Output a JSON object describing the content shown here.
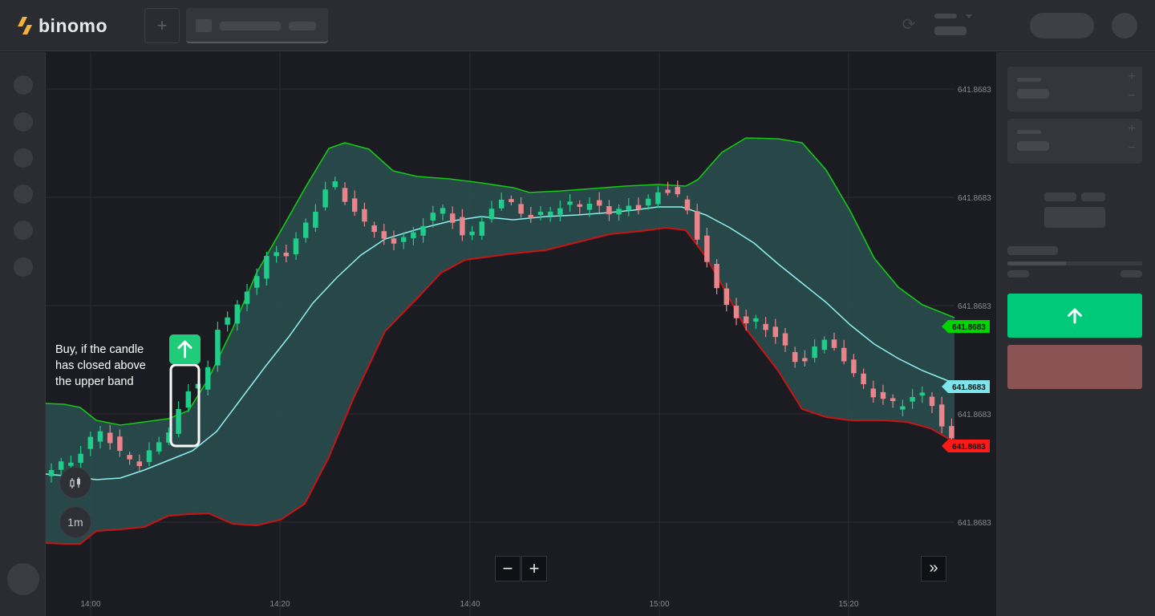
{
  "app": {
    "brand": "binomo"
  },
  "header": {
    "add_tab_label": "+"
  },
  "chart": {
    "y_tick_labels": [
      "641.8683",
      "641.8683",
      "641.8683",
      "641.8683",
      "641.8683"
    ],
    "x_tick_labels": [
      "14:00",
      "14:20",
      "14:40",
      "15:00",
      "15:20"
    ],
    "tags": {
      "upper": {
        "label": "641.8683",
        "color": "#00d400"
      },
      "middle": {
        "label": "641.8683",
        "color": "#7de6ea"
      },
      "lower": {
        "label": "641.8683",
        "color": "#ff1a1a"
      }
    },
    "timeframe_label": "1m",
    "zoom_out_label": "−",
    "zoom_in_label": "+",
    "annotation": {
      "lines": [
        "Buy, if the candle",
        "has closed above",
        "the upper band"
      ]
    },
    "colors": {
      "bull": "#1fcc8a",
      "bear": "#e9848a",
      "upper_band": "#14c814",
      "lower_band": "#c81414",
      "middle_band": "#8ff0ee",
      "band_fill": "#2a4d4f"
    }
  },
  "trade_panel": {
    "up_button_color": "#00c97a",
    "down_button_color": "#8a5353"
  }
}
